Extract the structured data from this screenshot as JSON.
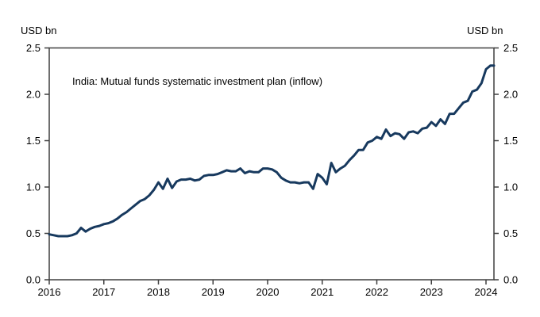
{
  "chart_data": {
    "type": "line",
    "title": "India: Mutual funds systematic investment plan (inflow)",
    "unit_label_left": "USD bn",
    "unit_label_right": "USD bn",
    "xlabel": "",
    "ylabel": "USD bn",
    "ylim": [
      0.0,
      2.5
    ],
    "grid": false,
    "legend": "none",
    "x_tick_labels": [
      "2016",
      "2017",
      "2018",
      "2019",
      "2020",
      "2021",
      "2022",
      "2023",
      "2024"
    ],
    "y_tick_labels": [
      "0.0",
      "0.5",
      "1.0",
      "1.5",
      "2.0",
      "2.5"
    ],
    "line_color": "#17395E",
    "axis_color": "#3F3F3F",
    "series": [
      {
        "name": "India mutual funds SIP inflow",
        "start": "2016-01",
        "frequency": "monthly",
        "values": [
          0.49,
          0.48,
          0.47,
          0.47,
          0.47,
          0.48,
          0.5,
          0.56,
          0.52,
          0.55,
          0.57,
          0.58,
          0.6,
          0.61,
          0.63,
          0.66,
          0.7,
          0.73,
          0.77,
          0.81,
          0.85,
          0.87,
          0.91,
          0.97,
          1.05,
          0.98,
          1.09,
          0.99,
          1.06,
          1.08,
          1.08,
          1.09,
          1.07,
          1.08,
          1.12,
          1.13,
          1.13,
          1.14,
          1.16,
          1.18,
          1.17,
          1.17,
          1.2,
          1.15,
          1.17,
          1.16,
          1.16,
          1.2,
          1.2,
          1.19,
          1.16,
          1.1,
          1.07,
          1.05,
          1.05,
          1.04,
          1.05,
          1.05,
          0.98,
          1.14,
          1.1,
          1.03,
          1.26,
          1.16,
          1.2,
          1.23,
          1.29,
          1.34,
          1.4,
          1.4,
          1.48,
          1.5,
          1.54,
          1.52,
          1.62,
          1.55,
          1.58,
          1.57,
          1.52,
          1.59,
          1.6,
          1.58,
          1.63,
          1.64,
          1.7,
          1.66,
          1.73,
          1.68,
          1.79,
          1.79,
          1.85,
          1.91,
          1.93,
          2.03,
          2.05,
          2.12,
          2.27,
          2.31,
          2.31
        ]
      }
    ]
  }
}
